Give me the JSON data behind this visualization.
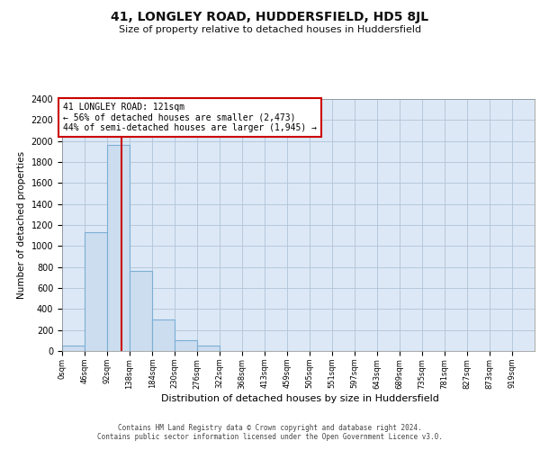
{
  "title": "41, LONGLEY ROAD, HUDDERSFIELD, HD5 8JL",
  "subtitle": "Size of property relative to detached houses in Huddersfield",
  "xlabel": "Distribution of detached houses by size in Huddersfield",
  "ylabel": "Number of detached properties",
  "footer_line1": "Contains HM Land Registry data © Crown copyright and database right 2024.",
  "footer_line2": "Contains public sector information licensed under the Open Government Licence v3.0.",
  "bin_edges": [
    0,
    46,
    92,
    138,
    184,
    230,
    276,
    322,
    368,
    413,
    459,
    505,
    551,
    597,
    643,
    689,
    735,
    781,
    827,
    873,
    919
  ],
  "bar_heights": [
    50,
    1130,
    1960,
    760,
    300,
    100,
    50,
    0,
    0,
    0,
    0,
    0,
    0,
    0,
    0,
    0,
    0,
    0,
    0,
    0
  ],
  "bar_color": "#ccddf0",
  "bar_edge_color": "#7bafd4",
  "grid_color": "#b0c4d8",
  "bg_color": "#dce8f5",
  "property_size": 121,
  "red_line_color": "#cc0000",
  "annotation_title": "41 LONGLEY ROAD: 121sqm",
  "annotation_line1": "← 56% of detached houses are smaller (2,473)",
  "annotation_line2": "44% of semi-detached houses are larger (1,945) →",
  "ylim": [
    0,
    2400
  ],
  "yticks": [
    0,
    200,
    400,
    600,
    800,
    1000,
    1200,
    1400,
    1600,
    1800,
    2000,
    2200,
    2400
  ],
  "tick_labels": [
    "0sqm",
    "46sqm",
    "92sqm",
    "138sqm",
    "184sqm",
    "230sqm",
    "276sqm",
    "322sqm",
    "368sqm",
    "413sqm",
    "459sqm",
    "505sqm",
    "551sqm",
    "597sqm",
    "643sqm",
    "689sqm",
    "735sqm",
    "781sqm",
    "827sqm",
    "873sqm",
    "919sqm"
  ]
}
